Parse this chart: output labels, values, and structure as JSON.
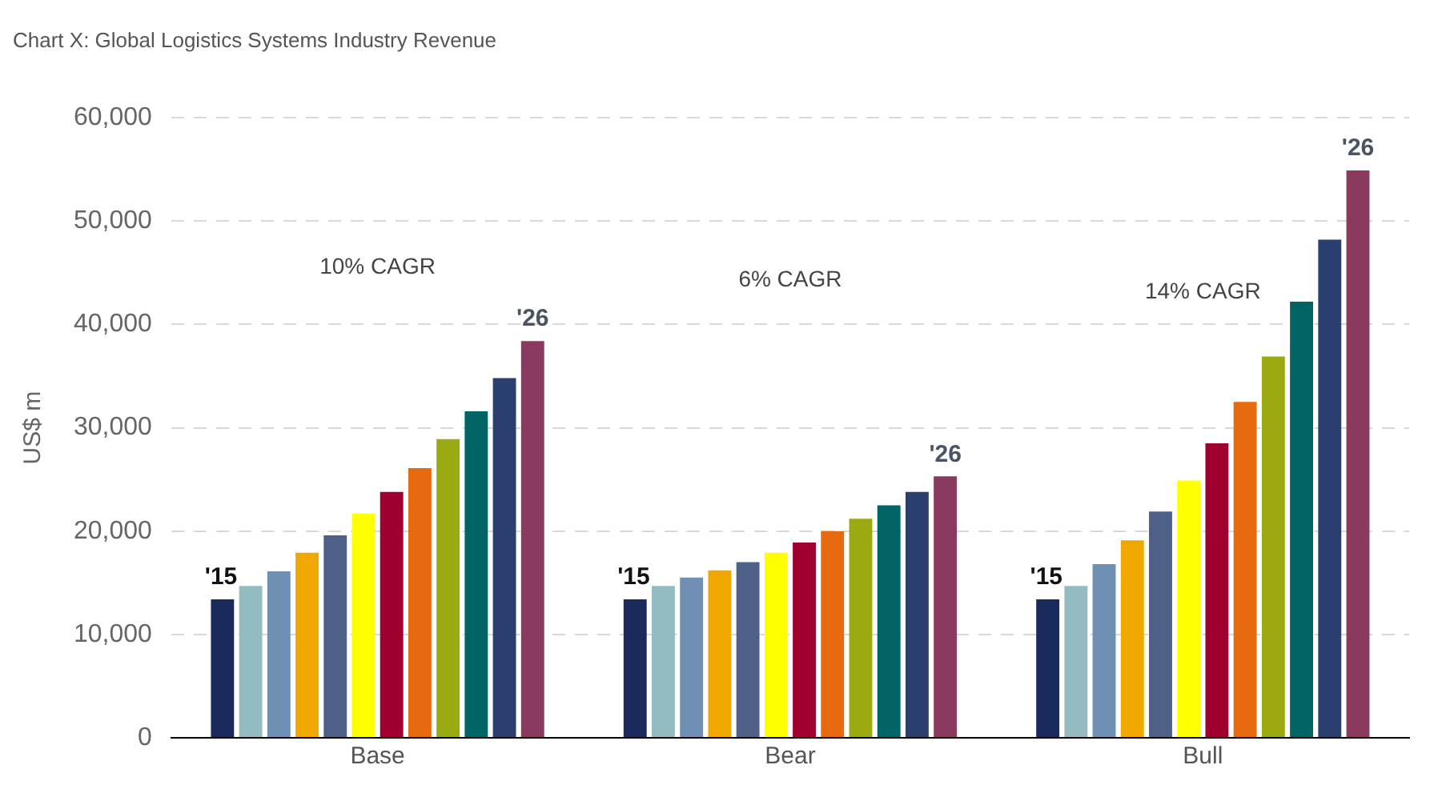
{
  "chart_data": {
    "type": "bar",
    "title": "Chart X: Global Logistics Systems Industry Revenue",
    "ylabel": "US$ m",
    "categories": [
      "Base",
      "Bear",
      "Bull"
    ],
    "series": [
      {
        "color": "#1b2a5c",
        "values": [
          13400,
          13400,
          13400
        ]
      },
      {
        "color": "#94bcc0",
        "values": [
          14700,
          14700,
          14700
        ]
      },
      {
        "color": "#6f8fb5",
        "values": [
          16100,
          15500,
          16800
        ]
      },
      {
        "color": "#f0a800",
        "values": [
          17900,
          16200,
          19100
        ]
      },
      {
        "color": "#4e6088",
        "values": [
          19600,
          17000,
          21900
        ]
      },
      {
        "color": "#ffff00",
        "values": [
          21700,
          17900,
          24900
        ]
      },
      {
        "color": "#a00030",
        "values": [
          23800,
          18900,
          28500
        ]
      },
      {
        "color": "#e86a10",
        "values": [
          26100,
          20000,
          32500
        ]
      },
      {
        "color": "#9aaa10",
        "values": [
          28900,
          21200,
          36900
        ]
      },
      {
        "color": "#006464",
        "values": [
          31600,
          22500,
          42200
        ]
      },
      {
        "color": "#2a3f6e",
        "values": [
          34800,
          23800,
          48200
        ]
      },
      {
        "color": "#8a3a5e",
        "values": [
          38400,
          25300,
          54900
        ]
      }
    ],
    "ylim": [
      0,
      60000
    ],
    "yticks": [
      {
        "value": 0,
        "label": "0"
      },
      {
        "value": 10000,
        "label": "10,000"
      },
      {
        "value": 20000,
        "label": "20,000"
      },
      {
        "value": 30000,
        "label": "30,000"
      },
      {
        "value": 40000,
        "label": "40,000"
      },
      {
        "value": 50000,
        "label": "50,000"
      },
      {
        "value": 60000,
        "label": "60,000"
      }
    ],
    "grid": "y",
    "annotations": [
      "'15",
      "'26",
      "'15",
      "'26",
      "'15",
      "'26",
      "10% CAGR",
      "6% CAGR",
      "14% CAGR"
    ]
  }
}
